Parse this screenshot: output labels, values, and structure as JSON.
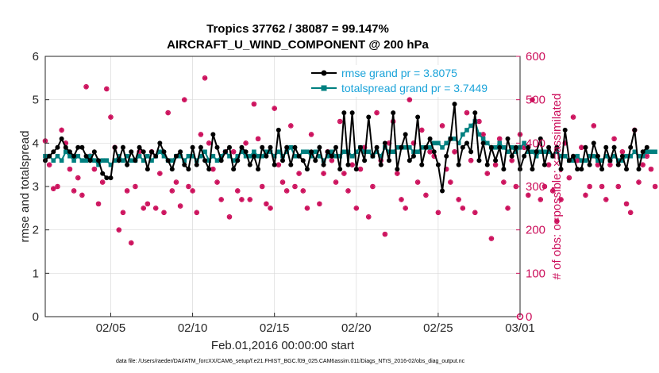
{
  "chart_data": {
    "type": "line",
    "title_line1": "Tropics 37762 / 38087 = 99.147%",
    "title_line2": "AIRCRAFT_U_WIND_COMPONENT @ 200 hPa",
    "xlabel": "Feb.01,2016 00:00:00 start",
    "ylabel_left": "rmse and totalspread",
    "ylabel_right": "# of obs: o=possible; ×=assimilated",
    "footer": "data file: /Users/raeder/DAI/ATM_forcXX/CAM6_setup/f.e21.FHIST_BGC.f09_025.CAM6assim.011/Diags_NTrS_2016-02/obs_diag_output.nc",
    "xlim": [
      1,
      30
    ],
    "ylim_left": [
      0,
      6
    ],
    "ylim_right": [
      0,
      600
    ],
    "x_ticks": [
      5,
      10,
      15,
      20,
      25,
      30
    ],
    "x_tick_labels": [
      "02/05",
      "02/10",
      "02/15",
      "02/20",
      "02/25",
      "03/01"
    ],
    "y_ticks_left": [
      "0",
      "1",
      "2",
      "3",
      "4",
      "5",
      "6"
    ],
    "y_ticks_right": [
      "0",
      "100",
      "200",
      "300",
      "400",
      "500",
      "600"
    ],
    "colors": {
      "rmse": "#000000",
      "spread": "#008080",
      "obs": "#cc0f5b",
      "legend_text": "#1aa3d9"
    },
    "series": [
      {
        "name": "rmse grand pr = 3.8075",
        "x_start": 1.0,
        "x_step": 0.25,
        "values": [
          3.6,
          3.7,
          3.8,
          3.9,
          4.1,
          3.9,
          3.8,
          3.7,
          3.9,
          3.9,
          3.7,
          3.6,
          3.8,
          3.6,
          3.3,
          3.2,
          3.2,
          3.9,
          3.6,
          3.9,
          3.5,
          3.8,
          3.6,
          3.9,
          3.8,
          3.4,
          3.8,
          3.7,
          4.0,
          3.8,
          3.6,
          3.4,
          3.7,
          3.8,
          3.5,
          3.4,
          3.9,
          3.5,
          3.9,
          3.6,
          3.4,
          4.2,
          3.9,
          3.6,
          3.8,
          3.9,
          3.4,
          3.6,
          3.9,
          3.8,
          3.5,
          3.7,
          3.4,
          3.9,
          3.7,
          3.9,
          3.5,
          4.3,
          3.6,
          3.9,
          3.5,
          3.9,
          3.7,
          3.6,
          3.4,
          3.8,
          3.6,
          3.9,
          3.5,
          3.8,
          3.7,
          3.9,
          3.4,
          4.7,
          3.5,
          4.7,
          3.4,
          3.9,
          3.6,
          4.6,
          3.7,
          3.9,
          3.5,
          4.0,
          3.6,
          4.7,
          3.4,
          3.9,
          4.2,
          3.6,
          3.7,
          4.6,
          3.5,
          3.9,
          4.1,
          3.8,
          3.5,
          2.9,
          3.7,
          4.1,
          4.9,
          3.5,
          3.9,
          4.0,
          3.8,
          4.7,
          3.6,
          4.0,
          3.5,
          3.9,
          3.6,
          3.9,
          3.4,
          4.1,
          3.7,
          3.9,
          3.4,
          3.7,
          3.9,
          3.4,
          3.8,
          4.1,
          3.5,
          3.9,
          3.7,
          3.9,
          3.4,
          4.3,
          3.6,
          3.7,
          3.4,
          3.4,
          3.9,
          3.5,
          4.0,
          3.7,
          3.4,
          3.9,
          3.6,
          3.9,
          3.5,
          3.7,
          3.4,
          3.9,
          4.3,
          3.4,
          3.8,
          3.9
        ]
      },
      {
        "name": "totalspread grand pr = 3.7449",
        "x_start": 1.0,
        "x_step": 0.25,
        "values": [
          3.7,
          3.7,
          3.6,
          3.7,
          3.6,
          3.8,
          3.7,
          3.6,
          3.7,
          3.6,
          3.6,
          3.7,
          3.6,
          3.5,
          3.6,
          3.6,
          3.5,
          3.6,
          3.7,
          3.6,
          3.7,
          3.6,
          3.6,
          3.7,
          3.6,
          3.7,
          3.6,
          3.7,
          3.8,
          3.7,
          3.6,
          3.6,
          3.7,
          3.7,
          3.6,
          3.7,
          3.7,
          3.6,
          3.7,
          3.8,
          3.6,
          3.7,
          3.6,
          3.7,
          3.8,
          3.7,
          3.6,
          3.7,
          3.8,
          3.7,
          3.7,
          3.8,
          3.7,
          3.7,
          3.8,
          3.8,
          3.7,
          3.8,
          3.7,
          3.8,
          3.9,
          3.7,
          3.7,
          3.8,
          3.8,
          3.7,
          3.8,
          3.7,
          3.6,
          3.7,
          3.8,
          3.7,
          3.7,
          3.8,
          3.8,
          3.7,
          3.8,
          3.9,
          3.8,
          3.8,
          3.7,
          3.8,
          3.7,
          3.9,
          3.8,
          3.8,
          3.9,
          3.9,
          3.9,
          3.9,
          3.8,
          3.8,
          3.9,
          3.9,
          3.9,
          4.0,
          4.0,
          3.9,
          4.0,
          4.1,
          4.1,
          4.0,
          4.2,
          4.3,
          4.4,
          4.5,
          4.2,
          4.1,
          4.0,
          3.9,
          3.9,
          4.0,
          3.9,
          3.8,
          3.9,
          3.8,
          3.9,
          4.0,
          3.8,
          3.8,
          3.7,
          3.8,
          3.8,
          3.8,
          3.7,
          3.8,
          3.7,
          3.7,
          3.6,
          3.6,
          3.7,
          3.6,
          3.6,
          3.7,
          3.7,
          3.6,
          3.6,
          3.7,
          3.6,
          3.7,
          3.6,
          3.6,
          3.7,
          3.7,
          3.8,
          3.7,
          3.7,
          3.8,
          3.8,
          3.8
        ]
      }
    ],
    "obs_counts": {
      "x_start": 1.0,
      "x_step": 0.25,
      "possible": [
        405,
        350,
        295,
        300,
        430,
        400,
        340,
        290,
        320,
        280,
        530,
        370,
        340,
        260,
        310,
        525,
        460,
        390,
        200,
        240,
        290,
        170,
        300,
        380,
        250,
        260,
        380,
        250,
        330,
        240,
        470,
        290,
        310,
        255,
        500,
        300,
        290,
        240,
        420,
        550,
        400,
        340,
        310,
        270,
        380,
        230,
        380,
        290,
        270,
        400,
        270,
        490,
        410,
        300,
        260,
        250,
        480,
        350,
        310,
        290,
        440,
        300,
        330,
        290,
        250,
        420,
        520,
        260,
        330,
        380,
        360,
        310,
        450,
        330,
        290,
        350,
        250,
        340,
        390,
        230,
        300,
        470,
        360,
        190,
        400,
        450,
        330,
        270,
        250,
        500,
        400,
        310,
        430,
        280,
        380,
        370,
        240,
        440,
        340,
        310,
        380,
        270,
        250,
        470,
        360,
        240,
        450,
        420,
        330,
        180,
        350,
        410,
        310,
        250,
        360,
        300,
        420,
        390,
        280,
        500,
        380,
        270,
        300,
        350,
        290,
        220,
        270,
        400,
        320,
        460,
        360,
        390,
        280,
        300,
        440,
        350,
        300,
        270,
        350,
        410,
        300,
        380,
        260,
        240,
        430,
        310,
        350,
        370,
        340,
        300
      ]
    }
  }
}
